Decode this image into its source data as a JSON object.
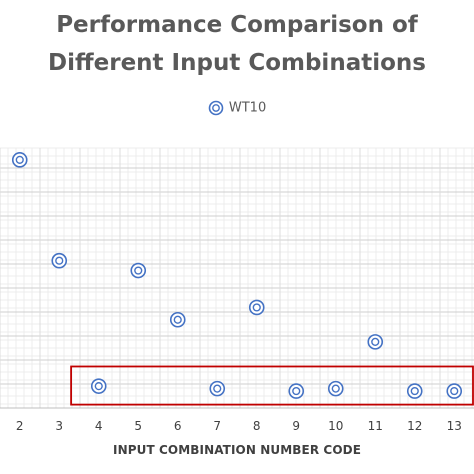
{
  "chart_data": {
    "type": "scatter",
    "title_lines": [
      "Performance Comparison of",
      "Different Input Combinations"
    ],
    "xlabel": "INPUT COMBINATION NUMBER CODE",
    "ylabel": "",
    "legend": {
      "entries": [
        "WT10"
      ],
      "placement": "top-center"
    },
    "x_ticks": [
      "2",
      "3",
      "4",
      "5",
      "6",
      "7",
      "8",
      "9",
      "10",
      "11",
      "12",
      "13"
    ],
    "xlim": [
      1.5,
      13.5
    ],
    "ylim": [
      0,
      10
    ],
    "grid": true,
    "series": [
      {
        "name": "WT10",
        "color": "#4472c4",
        "marker": "double-circle",
        "points": [
          {
            "x": 2,
            "y": 9.6
          },
          {
            "x": 3,
            "y": 5.5
          },
          {
            "x": 4,
            "y": 0.4
          },
          {
            "x": 5,
            "y": 5.1
          },
          {
            "x": 6,
            "y": 3.1
          },
          {
            "x": 7,
            "y": 0.3
          },
          {
            "x": 8,
            "y": 3.6
          },
          {
            "x": 9,
            "y": 0.2
          },
          {
            "x": 10,
            "y": 0.3
          },
          {
            "x": 11,
            "y": 2.2
          },
          {
            "x": 12,
            "y": 0.2
          },
          {
            "x": 13,
            "y": 0.2
          }
        ]
      }
    ],
    "highlight_box": {
      "x_from": 3.3,
      "x_to": 13.5,
      "y_from": -0.35,
      "y_to": 1.2,
      "color": "#c00000"
    }
  }
}
